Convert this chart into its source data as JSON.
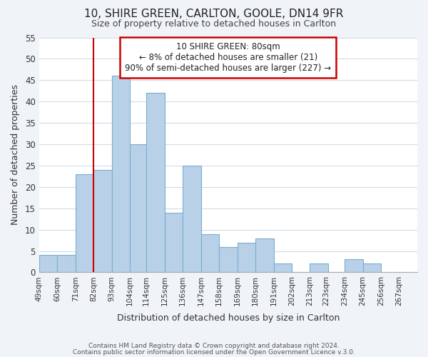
{
  "title1": "10, SHIRE GREEN, CARLTON, GOOLE, DN14 9FR",
  "title2": "Size of property relative to detached houses in Carlton",
  "xlabel": "Distribution of detached houses by size in Carlton",
  "ylabel": "Number of detached properties",
  "bar_values": [
    4,
    4,
    23,
    24,
    46,
    30,
    42,
    14,
    25,
    9,
    6,
    7,
    8,
    2,
    0,
    2,
    0,
    3,
    2
  ],
  "bin_left_edges": [
    49,
    60,
    71,
    82,
    93,
    104,
    114,
    125,
    136,
    147,
    158,
    169,
    180,
    191,
    202,
    213,
    223,
    234,
    245
  ],
  "bin_width": 11,
  "x_tick_positions": [
    49,
    60,
    71,
    82,
    93,
    104,
    114,
    125,
    136,
    147,
    158,
    169,
    180,
    191,
    202,
    213,
    223,
    234,
    245,
    256,
    267
  ],
  "x_tick_labels": [
    "49sqm",
    "60sqm",
    "71sqm",
    "82sqm",
    "93sqm",
    "104sqm",
    "114sqm",
    "125sqm",
    "136sqm",
    "147sqm",
    "158sqm",
    "169sqm",
    "180sqm",
    "191sqm",
    "202sqm",
    "213sqm",
    "223sqm",
    "234sqm",
    "245sqm",
    "256sqm",
    "267sqm"
  ],
  "bar_color": "#b8d0e8",
  "bar_edgecolor": "#7aaed0",
  "red_line_x": 82,
  "xlim_left": 49,
  "xlim_right": 278,
  "ylim": [
    0,
    55
  ],
  "yticks": [
    0,
    5,
    10,
    15,
    20,
    25,
    30,
    35,
    40,
    45,
    50,
    55
  ],
  "annotation_title": "10 SHIRE GREEN: 80sqm",
  "annotation_line1": "← 8% of detached houses are smaller (21)",
  "annotation_line2": "90% of semi-detached houses are larger (227) →",
  "annotation_box_color": "#ffffff",
  "annotation_box_edgecolor": "#cc0000",
  "footer1": "Contains HM Land Registry data © Crown copyright and database right 2024.",
  "footer2": "Contains public sector information licensed under the Open Government Licence v.3.0.",
  "background_color": "#f0f4f8",
  "plot_bg_color": "#ffffff",
  "grid_color": "#d0dce8"
}
